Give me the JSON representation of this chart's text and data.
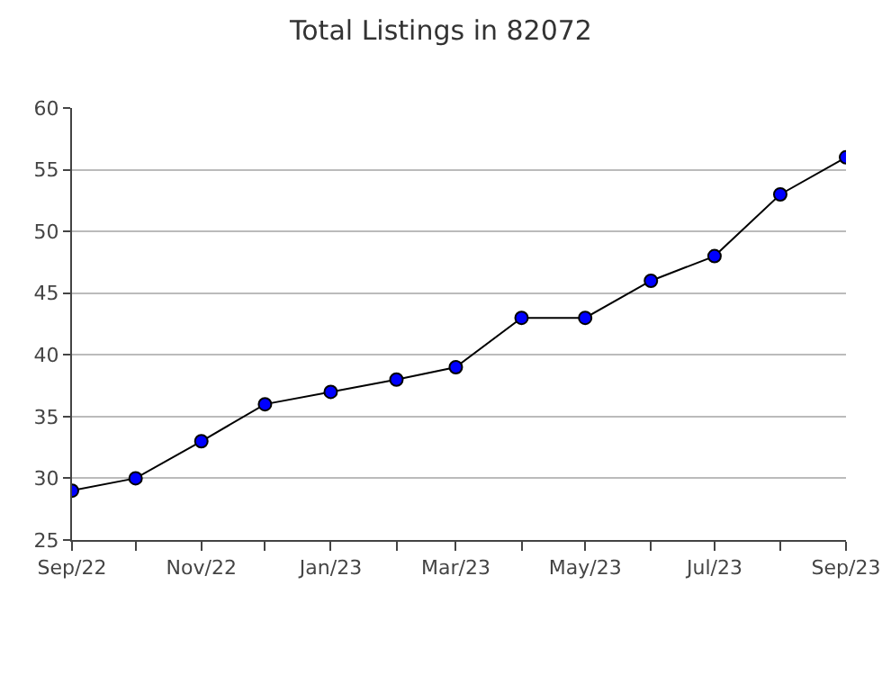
{
  "chart_data": {
    "type": "line",
    "title": "Total Listings in 82072",
    "x": [
      "2022-09",
      "2022-10",
      "2022-11",
      "2022-12",
      "2023-01",
      "2023-02",
      "2023-03",
      "2023-04",
      "2023-05",
      "2023-06",
      "2023-07",
      "2023-08",
      "2023-09"
    ],
    "series": [
      {
        "color": "#0000ff",
        "values": [
          29,
          30,
          33,
          36,
          37,
          38,
          39,
          43,
          43,
          46,
          48,
          53,
          56
        ]
      }
    ],
    "xlim": [
      "2022-09",
      "2023-09"
    ],
    "xticks": [
      {
        "value": "2022-09",
        "label": "Sep/22"
      },
      {
        "value": "2022-10",
        "label": null
      },
      {
        "value": "2022-11",
        "label": "Nov/22"
      },
      {
        "value": "2022-12",
        "label": null
      },
      {
        "value": "2023-01",
        "label": "Jan/23"
      },
      {
        "value": "2023-02",
        "label": null
      },
      {
        "value": "2023-03",
        "label": "Mar/23"
      },
      {
        "value": "2023-04",
        "label": null
      },
      {
        "value": "2023-05",
        "label": "May/23"
      },
      {
        "value": "2023-06",
        "label": null
      },
      {
        "value": "2023-07",
        "label": "Jul/23"
      },
      {
        "value": "2023-08",
        "label": null
      },
      {
        "value": "2023-09",
        "label": "Sep/23"
      }
    ],
    "ylim": [
      25,
      60
    ],
    "yticks": [
      25,
      30,
      35,
      40,
      45,
      50,
      55,
      60
    ],
    "grid": "y",
    "marker": "circle",
    "line_style": "solid"
  }
}
